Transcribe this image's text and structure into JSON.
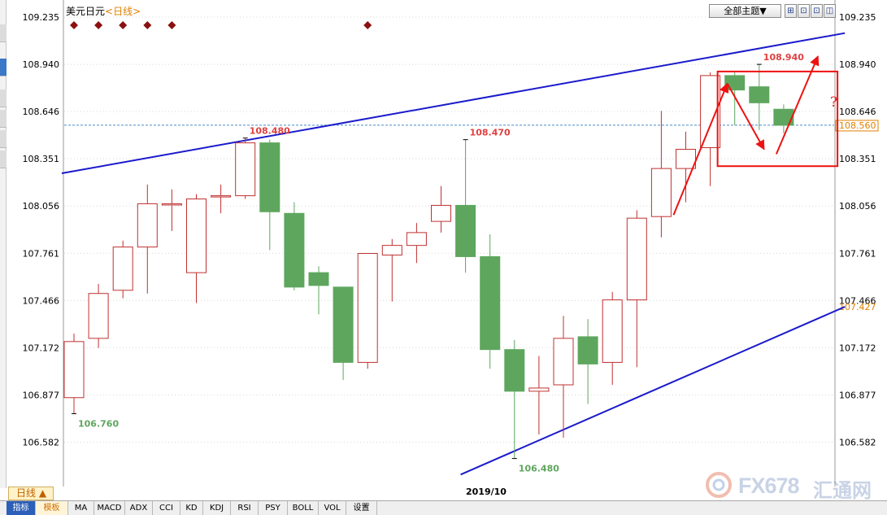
{
  "title": {
    "symbol": "美元日元",
    "period": "<日线>"
  },
  "toolbar": {
    "theme_label": "全部主题▼",
    "buttons": [
      "⊞",
      "⊡",
      "⊡",
      "◫"
    ]
  },
  "bottom": {
    "period_tab": "日线 ▲",
    "date_label": "2019/10",
    "tabs": [
      "指标",
      "模板",
      "MA",
      "MACD",
      "ADX",
      "CCI",
      "KD",
      "KDJ",
      "RSI",
      "PSY",
      "BOLL",
      "VOL",
      "设置"
    ]
  },
  "watermark": {
    "brand": "FX678",
    "brand_cn": "汇通网"
  },
  "annotation": {
    "question_mark": "?"
  },
  "colors": {
    "up": "#c03030",
    "down": "#5ea65e",
    "trendline": "#1a1acc",
    "arrow": "#ee1111",
    "box": "#ee1111",
    "grid": "#d8d8d8",
    "current_price_line": "#4a8ac8",
    "current_price_label": "#e08000",
    "star": "#8b1010"
  },
  "chart_data": {
    "type": "candlestick",
    "title": "美元日元<日线>",
    "ylim": [
      106.38,
      109.3
    ],
    "y_ticks": [
      109.235,
      108.94,
      108.646,
      108.351,
      108.056,
      107.761,
      107.466,
      107.172,
      106.877,
      106.582
    ],
    "candles": [
      {
        "o": 106.86,
        "c": 107.21,
        "h": 107.26,
        "l": 106.76
      },
      {
        "o": 107.23,
        "c": 107.51,
        "h": 107.57,
        "l": 107.17
      },
      {
        "o": 107.53,
        "c": 107.8,
        "h": 107.84,
        "l": 107.48
      },
      {
        "o": 107.8,
        "c": 108.07,
        "h": 108.19,
        "l": 107.51
      },
      {
        "o": 108.07,
        "c": 108.07,
        "h": 108.16,
        "l": 107.9
      },
      {
        "o": 107.64,
        "c": 108.1,
        "h": 108.13,
        "l": 107.45
      },
      {
        "o": 108.12,
        "c": 108.12,
        "h": 108.19,
        "l": 108.01
      },
      {
        "o": 108.12,
        "c": 108.45,
        "h": 108.48,
        "l": 108.1
      },
      {
        "o": 108.45,
        "c": 108.02,
        "h": 108.47,
        "l": 107.78
      },
      {
        "o": 108.01,
        "c": 107.55,
        "h": 108.08,
        "l": 107.53
      },
      {
        "o": 107.64,
        "c": 107.56,
        "h": 107.68,
        "l": 107.38
      },
      {
        "o": 107.55,
        "c": 107.08,
        "h": 107.55,
        "l": 106.97
      },
      {
        "o": 107.08,
        "c": 107.76,
        "h": 107.76,
        "l": 107.04
      },
      {
        "o": 107.75,
        "c": 107.81,
        "h": 107.85,
        "l": 107.46
      },
      {
        "o": 107.81,
        "c": 107.89,
        "h": 107.95,
        "l": 107.7
      },
      {
        "o": 107.96,
        "c": 108.06,
        "h": 108.18,
        "l": 107.89
      },
      {
        "o": 108.06,
        "c": 107.74,
        "h": 108.47,
        "l": 107.64
      },
      {
        "o": 107.74,
        "c": 107.16,
        "h": 107.88,
        "l": 107.04
      },
      {
        "o": 107.16,
        "c": 106.9,
        "h": 107.22,
        "l": 106.48
      },
      {
        "o": 106.9,
        "c": 106.92,
        "h": 107.12,
        "l": 106.63
      },
      {
        "o": 106.94,
        "c": 107.23,
        "h": 107.37,
        "l": 106.61
      },
      {
        "o": 107.24,
        "c": 107.07,
        "h": 107.35,
        "l": 106.82
      },
      {
        "o": 107.08,
        "c": 107.47,
        "h": 107.52,
        "l": 106.94
      },
      {
        "o": 107.47,
        "c": 107.98,
        "h": 108.03,
        "l": 107.05
      },
      {
        "o": 107.99,
        "c": 108.29,
        "h": 108.65,
        "l": 107.86
      },
      {
        "o": 108.29,
        "c": 108.41,
        "h": 108.52,
        "l": 108.08
      },
      {
        "o": 108.42,
        "c": 108.87,
        "h": 108.89,
        "l": 108.18
      },
      {
        "o": 108.87,
        "c": 108.78,
        "h": 108.89,
        "l": 108.56
      },
      {
        "o": 108.8,
        "c": 108.7,
        "h": 108.94,
        "l": 108.53
      },
      {
        "o": 108.66,
        "c": 108.56,
        "h": 108.69,
        "l": 108.51
      }
    ],
    "annotations": [
      {
        "label": "106.760",
        "price": 106.76,
        "index": 0
      },
      {
        "label": "108.480",
        "price": 108.48,
        "index": 7
      },
      {
        "label": "108.470",
        "price": 108.47,
        "index": 16
      },
      {
        "label": "106.480",
        "price": 106.48,
        "index": 18
      },
      {
        "label": "108.940",
        "price": 108.94,
        "index": 28
      }
    ],
    "current_price": {
      "value": 108.56,
      "label": "108.560"
    },
    "lower_trend_label": {
      "value": 107.427,
      "label": "107.427"
    },
    "trendlines": [
      {
        "name": "upper",
        "from": {
          "index": -0.5,
          "price": 108.26
        },
        "to": {
          "index": 31.5,
          "price": 109.135
        }
      },
      {
        "name": "lower",
        "from": {
          "index": 15.8,
          "price": 106.38
        },
        "to": {
          "index": 31.5,
          "price": 107.427
        }
      }
    ],
    "arrows": [
      {
        "from": {
          "index": 24.5,
          "price": 108.0
        },
        "to": {
          "index": 26.7,
          "price": 108.82
        }
      },
      {
        "from": {
          "index": 26.7,
          "price": 108.82
        },
        "to": {
          "index": 28.2,
          "price": 108.41
        }
      },
      {
        "from": {
          "index": 28.7,
          "price": 108.38
        },
        "to": {
          "index": 30.4,
          "price": 108.99
        }
      }
    ],
    "highlight_box": {
      "index_from": 26.3,
      "index_to": 31.2,
      "price_from": 108.33,
      "price_to": 108.87
    },
    "event_markers": [
      0,
      1,
      2,
      3,
      4,
      12
    ]
  }
}
